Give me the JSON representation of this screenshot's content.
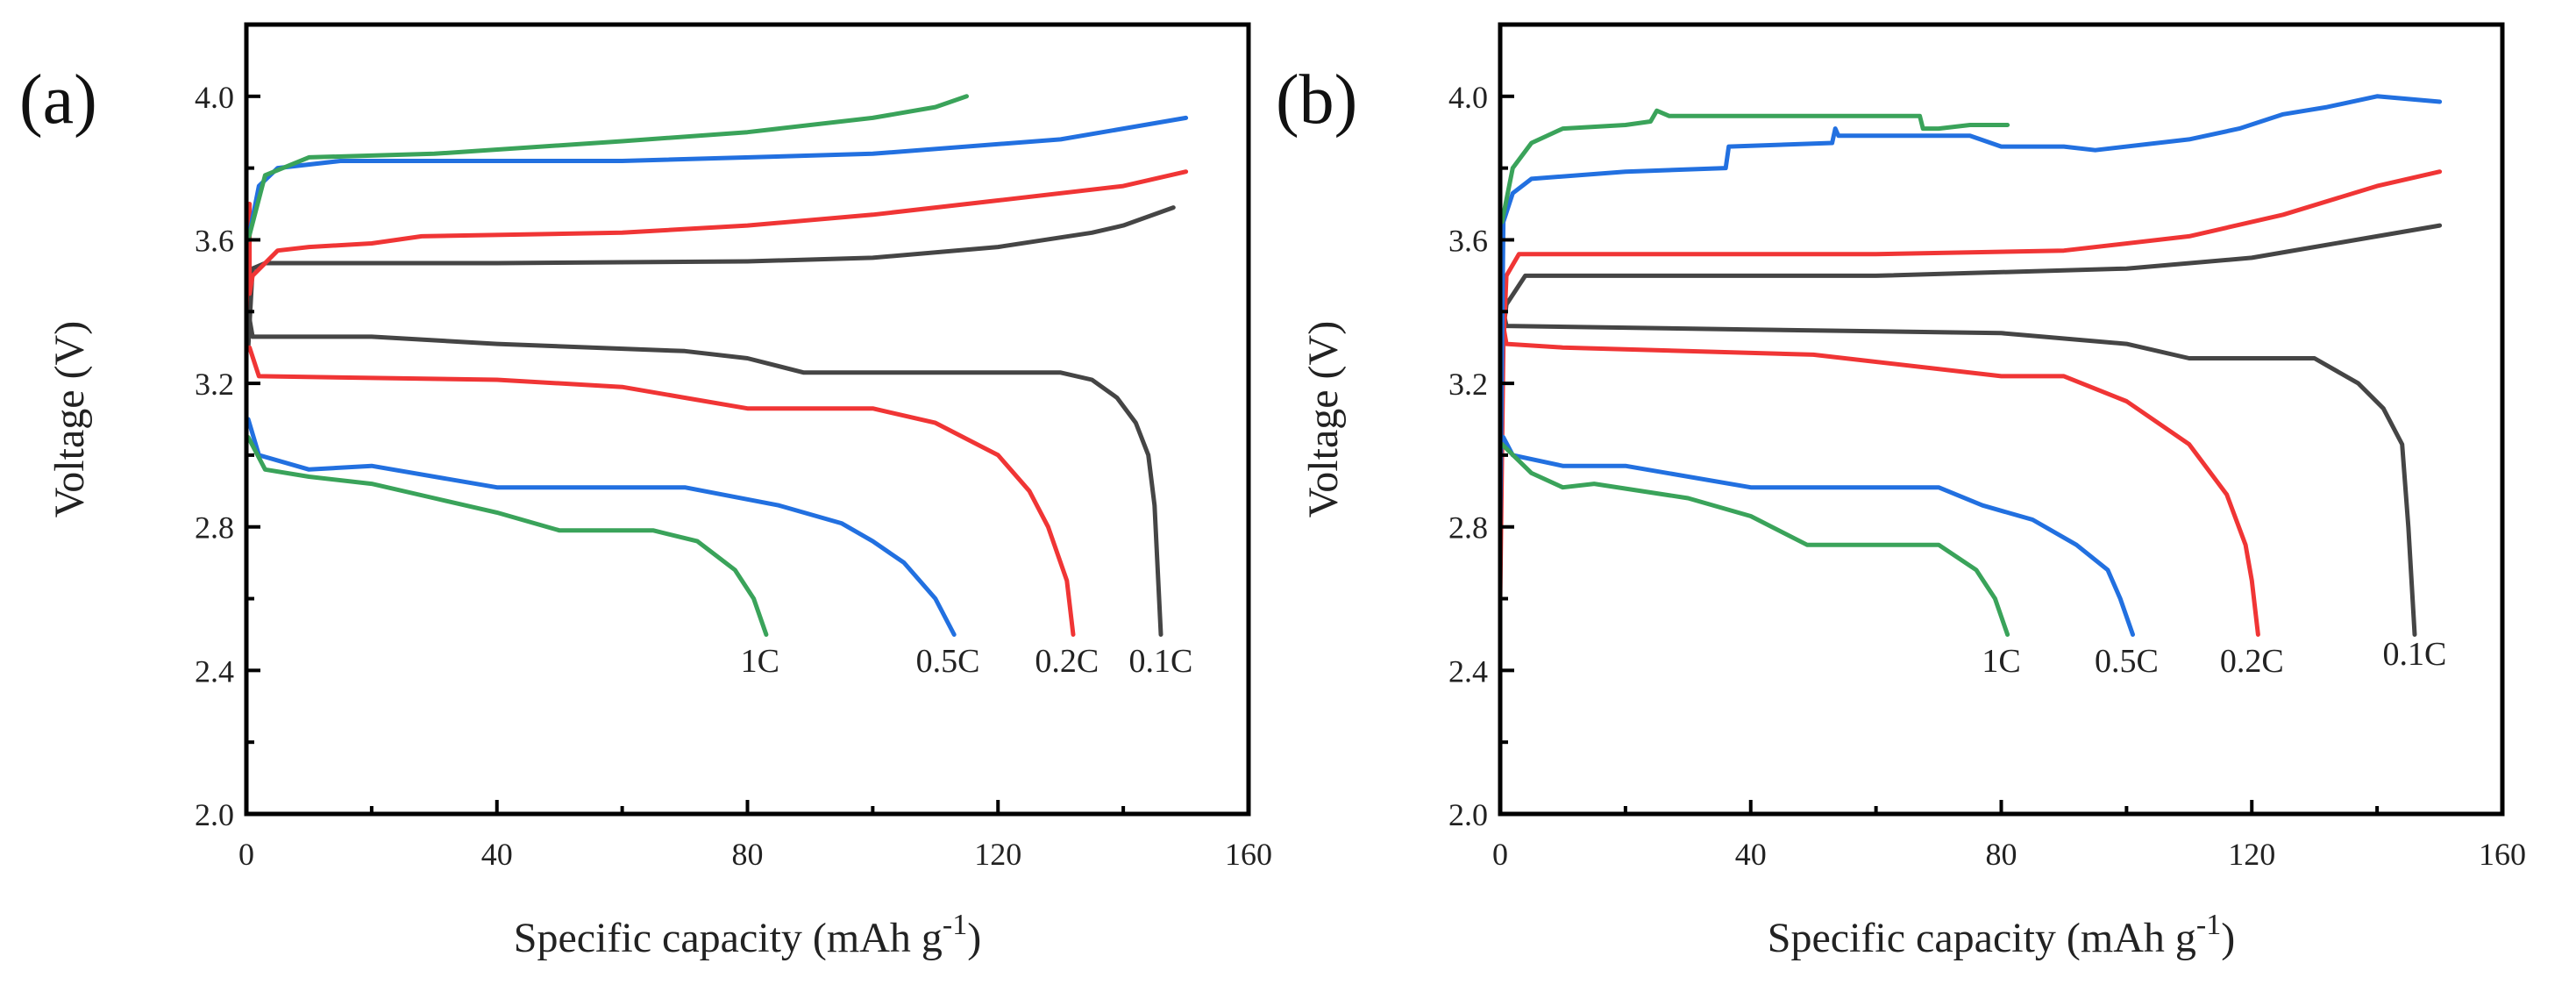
{
  "chart_data": [
    {
      "type": "line",
      "panel_label": "(a)",
      "xlabel": "Specific capacity (mAh g",
      "xlabel_sup": "-1",
      "xlabel_end": ")",
      "ylabel": "Voltage (V)",
      "xlim": [
        0,
        160
      ],
      "ylim": [
        2.0,
        4.2
      ],
      "xticks": [
        "0",
        "40",
        "80",
        "120",
        "160"
      ],
      "yticks": [
        "2.0",
        "2.4",
        "2.8",
        "3.2",
        "3.6",
        "4.0"
      ],
      "grid": false,
      "series": [
        {
          "name": "0.1C charge",
          "color": "#454545",
          "points": [
            [
              0.3,
              3.3
            ],
            [
              1,
              3.52
            ],
            [
              3,
              3.535
            ],
            [
              40,
              3.535
            ],
            [
              80,
              3.54
            ],
            [
              100,
              3.55
            ],
            [
              120,
              3.58
            ],
            [
              135,
              3.62
            ],
            [
              140,
              3.64
            ],
            [
              148,
              3.69
            ]
          ]
        },
        {
          "name": "0.1C discharge",
          "color": "#454545",
          "points": [
            [
              0.3,
              3.4
            ],
            [
              1,
              3.33
            ],
            [
              20,
              3.33
            ],
            [
              40,
              3.31
            ],
            [
              70,
              3.29
            ],
            [
              80,
              3.27
            ],
            [
              89,
              3.23
            ],
            [
              130,
              3.23
            ],
            [
              135,
              3.21
            ],
            [
              139,
              3.16
            ],
            [
              142,
              3.09
            ],
            [
              144,
              3.0
            ],
            [
              145,
              2.86
            ],
            [
              146,
              2.5
            ]
          ]
        },
        {
          "name": "0.2C charge",
          "color": "#f03535",
          "points": [
            [
              0,
              2.0
            ],
            [
              0,
              3.4
            ],
            [
              0.5,
              3.7
            ],
            [
              0.5,
              3.45
            ],
            [
              1,
              3.5
            ],
            [
              5,
              3.57
            ],
            [
              10,
              3.58
            ],
            [
              20,
              3.59
            ],
            [
              28,
              3.61
            ],
            [
              60,
              3.62
            ],
            [
              80,
              3.64
            ],
            [
              100,
              3.67
            ],
            [
              120,
              3.71
            ],
            [
              140,
              3.75
            ],
            [
              150,
              3.79
            ]
          ]
        },
        {
          "name": "0.2C discharge",
          "color": "#f03535",
          "points": [
            [
              0.5,
              3.3
            ],
            [
              2,
              3.22
            ],
            [
              40,
              3.21
            ],
            [
              60,
              3.19
            ],
            [
              70,
              3.16
            ],
            [
              80,
              3.13
            ],
            [
              100,
              3.13
            ],
            [
              110,
              3.09
            ],
            [
              120,
              3.0
            ],
            [
              125,
              2.9
            ],
            [
              128,
              2.8
            ],
            [
              131,
              2.65
            ],
            [
              132,
              2.5
            ]
          ]
        },
        {
          "name": "0.5C charge",
          "color": "#2270e0",
          "points": [
            [
              0.3,
              3.6
            ],
            [
              2,
              3.75
            ],
            [
              5,
              3.8
            ],
            [
              15,
              3.82
            ],
            [
              60,
              3.82
            ],
            [
              100,
              3.84
            ],
            [
              130,
              3.88
            ],
            [
              150,
              3.94
            ]
          ]
        },
        {
          "name": "0.5C discharge",
          "color": "#2270e0",
          "points": [
            [
              0.3,
              3.1
            ],
            [
              2,
              3.0
            ],
            [
              10,
              2.96
            ],
            [
              20,
              2.97
            ],
            [
              40,
              2.91
            ],
            [
              70,
              2.91
            ],
            [
              85,
              2.86
            ],
            [
              95,
              2.81
            ],
            [
              100,
              2.76
            ],
            [
              105,
              2.7
            ],
            [
              110,
              2.6
            ],
            [
              113,
              2.5
            ]
          ]
        },
        {
          "name": "1C charge",
          "color": "#3aa35a",
          "points": [
            [
              0.3,
              3.6
            ],
            [
              3,
              3.78
            ],
            [
              10,
              3.83
            ],
            [
              30,
              3.84
            ],
            [
              60,
              3.875
            ],
            [
              80,
              3.9
            ],
            [
              100,
              3.94
            ],
            [
              110,
              3.97
            ],
            [
              115,
              4.0
            ]
          ]
        },
        {
          "name": "1C discharge",
          "color": "#3aa35a",
          "points": [
            [
              0.3,
              3.05
            ],
            [
              3,
              2.96
            ],
            [
              10,
              2.94
            ],
            [
              20,
              2.92
            ],
            [
              30,
              2.88
            ],
            [
              40,
              2.84
            ],
            [
              50,
              2.79
            ],
            [
              65,
              2.79
            ],
            [
              72,
              2.76
            ],
            [
              78,
              2.68
            ],
            [
              81,
              2.6
            ],
            [
              83,
              2.5
            ]
          ]
        }
      ],
      "annotations": [
        {
          "text": "1C",
          "x": 82,
          "y": 2.43
        },
        {
          "text": "0.5C",
          "x": 112,
          "y": 2.43
        },
        {
          "text": "0.2C",
          "x": 131,
          "y": 2.43
        },
        {
          "text": "0.1C",
          "x": 146,
          "y": 2.43
        }
      ]
    },
    {
      "type": "line",
      "panel_label": "(b)",
      "xlabel": "Specific capacity (mAh g",
      "xlabel_sup": "-1",
      "xlabel_end": ")",
      "ylabel": "Voltage (V)",
      "xlim": [
        0,
        160
      ],
      "ylim": [
        2.0,
        4.2
      ],
      "xticks": [
        "0",
        "40",
        "80",
        "120",
        "160"
      ],
      "yticks": [
        "2.0",
        "2.4",
        "2.8",
        "3.2",
        "3.6",
        "4.0"
      ],
      "grid": false,
      "series": [
        {
          "name": "0.1C charge",
          "color": "#454545",
          "points": [
            [
              0.5,
              3.35
            ],
            [
              1,
              3.42
            ],
            [
              4,
              3.5
            ],
            [
              60,
              3.5
            ],
            [
              100,
              3.52
            ],
            [
              120,
              3.55
            ],
            [
              130,
              3.58
            ],
            [
              140,
              3.61
            ],
            [
              150,
              3.64
            ]
          ]
        },
        {
          "name": "0.1C discharge",
          "color": "#454545",
          "points": [
            [
              0.5,
              3.4
            ],
            [
              1,
              3.36
            ],
            [
              40,
              3.35
            ],
            [
              80,
              3.34
            ],
            [
              100,
              3.31
            ],
            [
              110,
              3.27
            ],
            [
              130,
              3.27
            ],
            [
              137,
              3.2
            ],
            [
              141,
              3.13
            ],
            [
              144,
              3.03
            ],
            [
              145,
              2.8
            ],
            [
              146,
              2.5
            ]
          ]
        },
        {
          "name": "0.2C charge",
          "color": "#f03535",
          "points": [
            [
              0,
              2.6
            ],
            [
              0.5,
              3.3
            ],
            [
              1,
              3.5
            ],
            [
              3,
              3.56
            ],
            [
              60,
              3.56
            ],
            [
              90,
              3.57
            ],
            [
              110,
              3.61
            ],
            [
              125,
              3.67
            ],
            [
              140,
              3.75
            ],
            [
              150,
              3.79
            ]
          ]
        },
        {
          "name": "0.2C discharge",
          "color": "#f03535",
          "points": [
            [
              0.5,
              3.36
            ],
            [
              1,
              3.31
            ],
            [
              10,
              3.3
            ],
            [
              50,
              3.28
            ],
            [
              80,
              3.22
            ],
            [
              90,
              3.22
            ],
            [
              100,
              3.15
            ],
            [
              110,
              3.03
            ],
            [
              116,
              2.89
            ],
            [
              119,
              2.75
            ],
            [
              120,
              2.65
            ],
            [
              121,
              2.5
            ]
          ]
        },
        {
          "name": "0.5C charge",
          "color": "#2270e0",
          "points": [
            [
              0,
              2.8
            ],
            [
              0.5,
              3.65
            ],
            [
              2,
              3.73
            ],
            [
              5,
              3.77
            ],
            [
              20,
              3.79
            ],
            [
              36,
              3.8
            ],
            [
              36.5,
              3.86
            ],
            [
              53,
              3.87
            ],
            [
              53.5,
              3.91
            ],
            [
              54,
              3.89
            ],
            [
              60,
              3.89
            ],
            [
              75,
              3.89
            ],
            [
              80,
              3.86
            ],
            [
              90,
              3.86
            ],
            [
              95,
              3.85
            ],
            [
              110,
              3.88
            ],
            [
              118,
              3.91
            ],
            [
              125,
              3.95
            ],
            [
              132,
              3.97
            ],
            [
              140,
              4.0
            ],
            [
              150,
              3.985
            ]
          ]
        },
        {
          "name": "0.5C discharge",
          "color": "#2270e0",
          "points": [
            [
              0.5,
              3.05
            ],
            [
              2,
              3.0
            ],
            [
              10,
              2.97
            ],
            [
              20,
              2.97
            ],
            [
              40,
              2.91
            ],
            [
              70,
              2.91
            ],
            [
              77,
              2.86
            ],
            [
              85,
              2.82
            ],
            [
              92,
              2.75
            ],
            [
              97,
              2.68
            ],
            [
              99,
              2.6
            ],
            [
              101,
              2.5
            ]
          ]
        },
        {
          "name": "1C charge",
          "color": "#3aa35a",
          "points": [
            [
              0.3,
              3.65
            ],
            [
              2,
              3.8
            ],
            [
              5,
              3.87
            ],
            [
              10,
              3.91
            ],
            [
              20,
              3.92
            ],
            [
              24,
              3.93
            ],
            [
              25,
              3.96
            ],
            [
              27,
              3.945
            ],
            [
              67,
              3.945
            ],
            [
              67.5,
              3.91
            ],
            [
              70,
              3.91
            ],
            [
              75,
              3.92
            ],
            [
              81,
              3.92
            ]
          ]
        },
        {
          "name": "1C discharge",
          "color": "#3aa35a",
          "points": [
            [
              0.3,
              3.03
            ],
            [
              5,
              2.95
            ],
            [
              10,
              2.91
            ],
            [
              15,
              2.92
            ],
            [
              30,
              2.88
            ],
            [
              40,
              2.83
            ],
            [
              49,
              2.75
            ],
            [
              70,
              2.75
            ],
            [
              76,
              2.68
            ],
            [
              79,
              2.6
            ],
            [
              81,
              2.5
            ]
          ]
        }
      ],
      "annotations": [
        {
          "text": "1C",
          "x": 80,
          "y": 2.43
        },
        {
          "text": "0.5C",
          "x": 100,
          "y": 2.43
        },
        {
          "text": "0.2C",
          "x": 120,
          "y": 2.43
        },
        {
          "text": "0.1C",
          "x": 146,
          "y": 2.45
        }
      ]
    }
  ]
}
